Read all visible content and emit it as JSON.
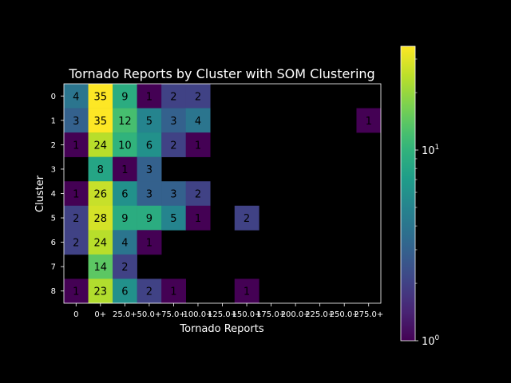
{
  "chart_data": {
    "type": "heatmap",
    "title": "Tornado Reports by Cluster with SOM Clustering",
    "xlabel": "Tornado Reports",
    "ylabel": "Cluster",
    "x_categories": [
      "0",
      "0+",
      "25.0+",
      "50.0+",
      "75.0+",
      "100.0+",
      "125.0+",
      "150.0+",
      "175.0+",
      "200.0+",
      "225.0+",
      "250.0+",
      "275.0+"
    ],
    "y_categories": [
      "0",
      "1",
      "2",
      "3",
      "4",
      "5",
      "6",
      "7",
      "8"
    ],
    "values": [
      [
        4,
        35,
        9,
        1,
        2,
        2,
        null,
        null,
        null,
        null,
        null,
        null,
        null
      ],
      [
        3,
        35,
        12,
        5,
        3,
        4,
        null,
        null,
        null,
        null,
        null,
        null,
        1
      ],
      [
        1,
        24,
        10,
        6,
        2,
        1,
        null,
        null,
        null,
        null,
        null,
        null,
        null
      ],
      [
        null,
        8,
        1,
        3,
        null,
        null,
        null,
        null,
        null,
        null,
        null,
        null,
        null
      ],
      [
        1,
        26,
        6,
        3,
        3,
        2,
        null,
        null,
        null,
        null,
        null,
        null,
        null
      ],
      [
        2,
        28,
        9,
        9,
        5,
        1,
        null,
        2,
        null,
        null,
        null,
        null,
        null
      ],
      [
        2,
        24,
        4,
        1,
        null,
        null,
        null,
        null,
        null,
        null,
        null,
        null,
        null
      ],
      [
        null,
        14,
        2,
        null,
        null,
        null,
        null,
        null,
        null,
        null,
        null,
        null,
        null
      ],
      [
        1,
        23,
        6,
        2,
        1,
        null,
        null,
        1,
        null,
        null,
        null,
        null,
        null
      ]
    ],
    "color_scale": "log",
    "colormap": "viridis",
    "vmin": 1,
    "vmax": 35,
    "colorbar_ticks": [
      {
        "value": 1,
        "label": "10",
        "exp": "0"
      },
      {
        "value": 10,
        "label": "10",
        "exp": "1"
      }
    ],
    "grid": false,
    "background": "#000000"
  }
}
